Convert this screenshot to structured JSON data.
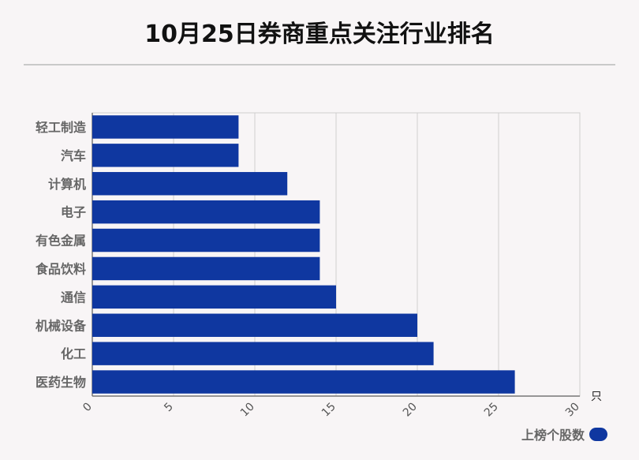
{
  "title": "10月25日券商重点关注行业排名",
  "colors": {
    "bar": "#0f37a0",
    "grid": "#cfcfcf",
    "axis": "#777777",
    "label": "#666666"
  },
  "chart_data": {
    "type": "bar",
    "orientation": "horizontal",
    "categories": [
      "轻工制造",
      "汽车",
      "计算机",
      "电子",
      "有色金属",
      "食品饮料",
      "通信",
      "机械设备",
      "化工",
      "医药生物"
    ],
    "series": [
      {
        "name": "上榜个股数",
        "values": [
          9,
          9,
          12,
          14,
          14,
          14,
          15,
          20,
          21,
          26
        ]
      }
    ],
    "xlim": [
      0,
      30
    ],
    "xticks": [
      "0",
      "5",
      "10",
      "15",
      "20",
      "25",
      "30"
    ],
    "xunit": "只",
    "grid": true,
    "legend": "bottom-right"
  }
}
